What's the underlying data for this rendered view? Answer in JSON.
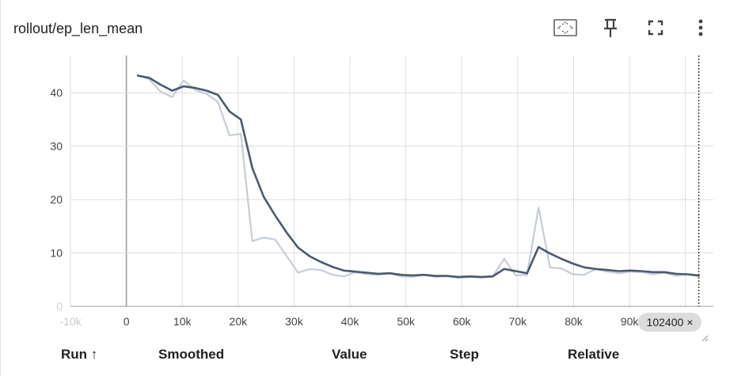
{
  "card": {
    "title": "rollout/ep_len_mean",
    "toolbar": {
      "fit_icon": "fit-domain-icon",
      "pin_icon": "pin-icon",
      "fullscreen_icon": "fullscreen-icon",
      "more_icon": "more-vert-icon"
    }
  },
  "chart_data": {
    "type": "line",
    "title": "rollout/ep_len_mean",
    "xlabel": "",
    "ylabel": "",
    "xlim": [
      -10000,
      105000
    ],
    "ylim": [
      0,
      47
    ],
    "x_ticks": [
      -10000,
      0,
      10000,
      20000,
      30000,
      40000,
      50000,
      60000,
      70000,
      80000,
      90000,
      100000
    ],
    "x_tick_labels": [
      "-10k",
      "0",
      "10k",
      "20k",
      "30k",
      "40k",
      "50k",
      "60k",
      "70k",
      "80k",
      "90k",
      "100k"
    ],
    "y_ticks": [
      0,
      10,
      20,
      30,
      40
    ],
    "y_tick_labels": [
      "0",
      "10",
      "20",
      "30",
      "40"
    ],
    "grid": true,
    "cursor_step": 102400,
    "cursor_label": "102400",
    "series": [
      {
        "role": "raw",
        "color": "#c5cdd8",
        "x": [
          2048,
          4096,
          6144,
          8192,
          10240,
          12288,
          14336,
          16384,
          18432,
          20480,
          22528,
          24576,
          26624,
          28672,
          30720,
          32768,
          34816,
          36864,
          38912,
          40960,
          43008,
          45056,
          47104,
          49152,
          51200,
          53248,
          55296,
          57344,
          59392,
          61440,
          63488,
          65536,
          67584,
          69632,
          71680,
          73728,
          75776,
          77824,
          79872,
          81920,
          83968,
          86016,
          88064,
          90112,
          92160,
          94208,
          96256,
          98304,
          100352,
          102400
        ],
        "values": [
          43.3,
          42.5,
          40.2,
          39.2,
          42.3,
          40.5,
          39.8,
          38.3,
          32.0,
          32.3,
          12.2,
          12.9,
          12.5,
          9.4,
          6.3,
          7.0,
          6.8,
          5.9,
          5.6,
          6.4,
          6.0,
          5.9,
          6.2,
          5.6,
          5.5,
          5.9,
          5.5,
          5.7,
          5.3,
          5.5,
          5.4,
          5.6,
          8.9,
          5.8,
          5.9,
          18.5,
          7.3,
          7.1,
          6.0,
          5.9,
          7.0,
          6.5,
          6.2,
          6.5,
          6.4,
          6.0,
          6.3,
          5.7,
          6.0,
          5.6
        ]
      },
      {
        "role": "smoothed",
        "color": "#4b5a6e",
        "x": [
          2048,
          4096,
          6144,
          8192,
          10240,
          12288,
          14336,
          16384,
          18432,
          20480,
          22528,
          24576,
          26624,
          28672,
          30720,
          32768,
          34816,
          36864,
          38912,
          40960,
          43008,
          45056,
          47104,
          49152,
          51200,
          53248,
          55296,
          57344,
          59392,
          61440,
          63488,
          65536,
          67584,
          69632,
          71680,
          73728,
          75776,
          77824,
          79872,
          81920,
          83968,
          86016,
          88064,
          90112,
          92160,
          94208,
          96256,
          98304,
          100352,
          102400
        ],
        "values": [
          43.2,
          42.8,
          41.5,
          40.4,
          41.2,
          40.9,
          40.4,
          39.6,
          36.5,
          35.0,
          25.9,
          20.5,
          17.0,
          13.8,
          11.0,
          9.4,
          8.3,
          7.4,
          6.7,
          6.5,
          6.3,
          6.1,
          6.2,
          5.9,
          5.8,
          5.9,
          5.7,
          5.7,
          5.5,
          5.6,
          5.5,
          5.6,
          7.0,
          6.6,
          6.2,
          11.1,
          9.9,
          8.9,
          8.0,
          7.3,
          7.0,
          6.8,
          6.6,
          6.7,
          6.6,
          6.4,
          6.4,
          6.1,
          6.0,
          5.8
        ]
      }
    ]
  },
  "table_headers": {
    "run": "Run ↑",
    "smoothed": "Smoothed",
    "value": "Value",
    "step": "Step",
    "relative": "Relative"
  }
}
